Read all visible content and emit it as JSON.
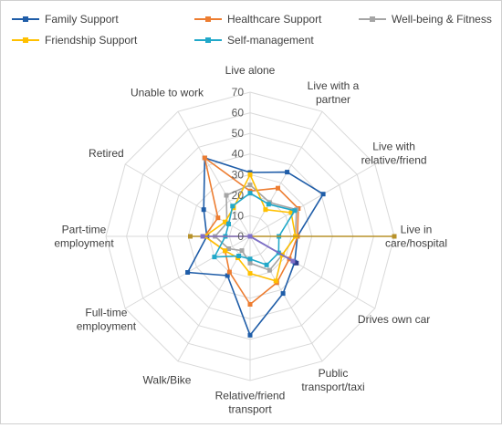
{
  "chart_data": {
    "type": "radar",
    "title": "",
    "axis_range": [
      0,
      70
    ],
    "tick_step": 10,
    "ticks": [
      "0",
      "10",
      "20",
      "30",
      "40",
      "50",
      "60",
      "70"
    ],
    "grid": true,
    "legend_position": "top",
    "categories": [
      [
        "Live alone"
      ],
      [
        "Live with a",
        "partner"
      ],
      [
        "Live with",
        "relative/friend"
      ],
      [
        "Live in",
        "care/hospital"
      ],
      [
        "Drives own car"
      ],
      [
        "Public",
        "transport/taxi"
      ],
      [
        "Relative/friend",
        "transport"
      ],
      [
        "Walk/Bike"
      ],
      [
        "Full-time",
        "employment"
      ],
      [
        "Part-time",
        "employment"
      ],
      [
        "Retired"
      ],
      [
        "Unable to work"
      ]
    ],
    "series": [
      {
        "name": "Family Support",
        "color": "#1F5DA8",
        "values": [
          31,
          36,
          41,
          23,
          25,
          32,
          48,
          22,
          35,
          21,
          26,
          44
        ]
      },
      {
        "name": "Healthcare Support",
        "color": "#ED7D31",
        "values": [
          22,
          27,
          27,
          23,
          22,
          26,
          33,
          20,
          14,
          22,
          18,
          44
        ]
      },
      {
        "name": "Well-being & Fitness",
        "color": "#A5A5A5",
        "values": [
          25,
          19,
          26,
          22,
          18,
          19,
          13,
          8,
          12,
          17,
          13,
          23
        ]
      },
      {
        "name": "Friendship Support",
        "color": "#FFC000",
        "values": [
          30,
          15,
          23,
          22,
          18,
          25,
          18,
          12,
          14,
          22,
          14,
          16
        ]
      },
      {
        "name": "Self-management",
        "color": "#21A8C9",
        "values": [
          21,
          18,
          25,
          14,
          16,
          16,
          11,
          11,
          20,
          12,
          12,
          17
        ]
      },
      {
        "name": "",
        "color": "#2E3C8C",
        "values": [
          0,
          0,
          0,
          0,
          26,
          0,
          0,
          0,
          0,
          0,
          0,
          0
        ]
      },
      {
        "name": "",
        "color": "#B8922A",
        "values": [
          0,
          0,
          0,
          70,
          0,
          0,
          0,
          0,
          0,
          29,
          0,
          0
        ]
      },
      {
        "name": "",
        "color": "#7F6FC8",
        "values": [
          0,
          0,
          0,
          0,
          24,
          0,
          0,
          0,
          0,
          23,
          0,
          0
        ]
      }
    ]
  }
}
